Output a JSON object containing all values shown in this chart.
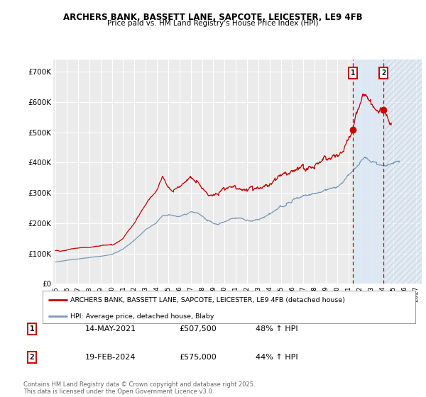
{
  "title1": "ARCHERS BANK, BASSETT LANE, SAPCOTE, LEICESTER, LE9 4FB",
  "title2": "Price paid vs. HM Land Registry's House Price Index (HPI)",
  "ylabel_ticks": [
    "£0",
    "£100K",
    "£200K",
    "£300K",
    "£400K",
    "£500K",
    "£600K",
    "£700K"
  ],
  "ytick_values": [
    0,
    100000,
    200000,
    300000,
    400000,
    500000,
    600000,
    700000
  ],
  "ylim": [
    0,
    740000
  ],
  "xlim_start": 1994.8,
  "xlim_end": 2027.5,
  "background_color": "#ffffff",
  "plot_bg_color": "#ebebeb",
  "grid_color": "#ffffff",
  "red_line_color": "#cc0000",
  "blue_line_color": "#7799bb",
  "shade_color": "#dde8f5",
  "marker1_x": 2021.37,
  "marker1_y": 507500,
  "marker2_x": 2024.12,
  "marker2_y": 575000,
  "dashed_line1_x": 2021.37,
  "dashed_line2_x": 2024.12,
  "legend_line1": "ARCHERS BANK, BASSETT LANE, SAPCOTE, LEICESTER, LE9 4FB (detached house)",
  "legend_line2": "HPI: Average price, detached house, Blaby",
  "annotation1_label": "1",
  "annotation1_date": "14-MAY-2021",
  "annotation1_price": "£507,500",
  "annotation1_hpi": "48% ↑ HPI",
  "annotation2_label": "2",
  "annotation2_date": "19-FEB-2024",
  "annotation2_price": "£575,000",
  "annotation2_hpi": "44% ↑ HPI",
  "footer": "Contains HM Land Registry data © Crown copyright and database right 2025.\nThis data is licensed under the Open Government Licence v3.0.",
  "xtick_years": [
    1995,
    1996,
    1997,
    1998,
    1999,
    2000,
    2001,
    2002,
    2003,
    2004,
    2005,
    2006,
    2007,
    2008,
    2009,
    2010,
    2011,
    2012,
    2013,
    2014,
    2015,
    2016,
    2017,
    2018,
    2019,
    2020,
    2021,
    2022,
    2023,
    2024,
    2025,
    2026,
    2027
  ]
}
